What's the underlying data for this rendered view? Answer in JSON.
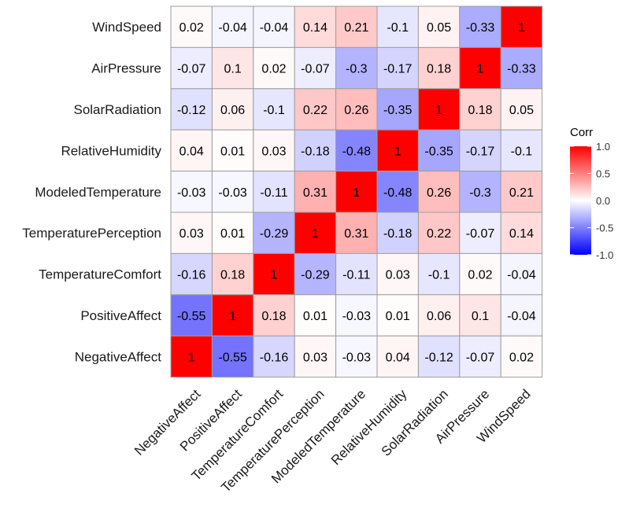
{
  "chart_data": {
    "type": "heatmap",
    "title": "",
    "xlabel": "",
    "ylabel": "",
    "x_categories": [
      "NegativeAffect",
      "PositiveAffect",
      "TemperatureComfort",
      "TemperaturePerception",
      "ModeledTemperature",
      "RelativeHumidity",
      "SolarRadiation",
      "AirPressure",
      "WindSpeed"
    ],
    "y_categories_top_to_bottom": [
      "WindSpeed",
      "AirPressure",
      "SolarRadiation",
      "RelativeHumidity",
      "ModeledTemperature",
      "TemperaturePerception",
      "TemperatureComfort",
      "PositiveAffect",
      "NegativeAffect"
    ],
    "matrix": [
      [
        0.02,
        -0.04,
        -0.04,
        0.14,
        0.21,
        -0.1,
        0.05,
        -0.33,
        1
      ],
      [
        -0.07,
        0.1,
        0.02,
        -0.07,
        -0.3,
        -0.17,
        0.18,
        1,
        -0.33
      ],
      [
        -0.12,
        0.06,
        -0.1,
        0.22,
        0.26,
        -0.35,
        1,
        0.18,
        0.05
      ],
      [
        0.04,
        0.01,
        0.03,
        -0.18,
        -0.48,
        1,
        -0.35,
        -0.17,
        -0.1
      ],
      [
        -0.03,
        -0.03,
        -0.11,
        0.31,
        1,
        -0.48,
        0.26,
        -0.3,
        0.21
      ],
      [
        0.03,
        0.01,
        -0.29,
        1,
        0.31,
        -0.18,
        0.22,
        -0.07,
        0.14
      ],
      [
        -0.16,
        0.18,
        1,
        -0.29,
        -0.11,
        0.03,
        -0.1,
        0.02,
        -0.04
      ],
      [
        -0.55,
        1,
        0.18,
        0.01,
        -0.03,
        0.01,
        0.06,
        0.1,
        -0.04
      ],
      [
        1,
        -0.55,
        -0.16,
        0.03,
        -0.03,
        0.04,
        -0.12,
        -0.07,
        0.02
      ]
    ],
    "color_scale": {
      "low": "#0000ff",
      "mid": "#ffffff",
      "high": "#ff0000",
      "range": [
        -1.0,
        1.0
      ]
    },
    "legend": {
      "title": "Corr",
      "position": "right",
      "ticks": [
        "1.0",
        "0.5",
        "0.0",
        "-0.5",
        "-1.0"
      ],
      "tick_values": [
        1.0,
        0.5,
        0.0,
        -0.5,
        -1.0
      ]
    },
    "cell_border_color": "#9e9e9e"
  }
}
